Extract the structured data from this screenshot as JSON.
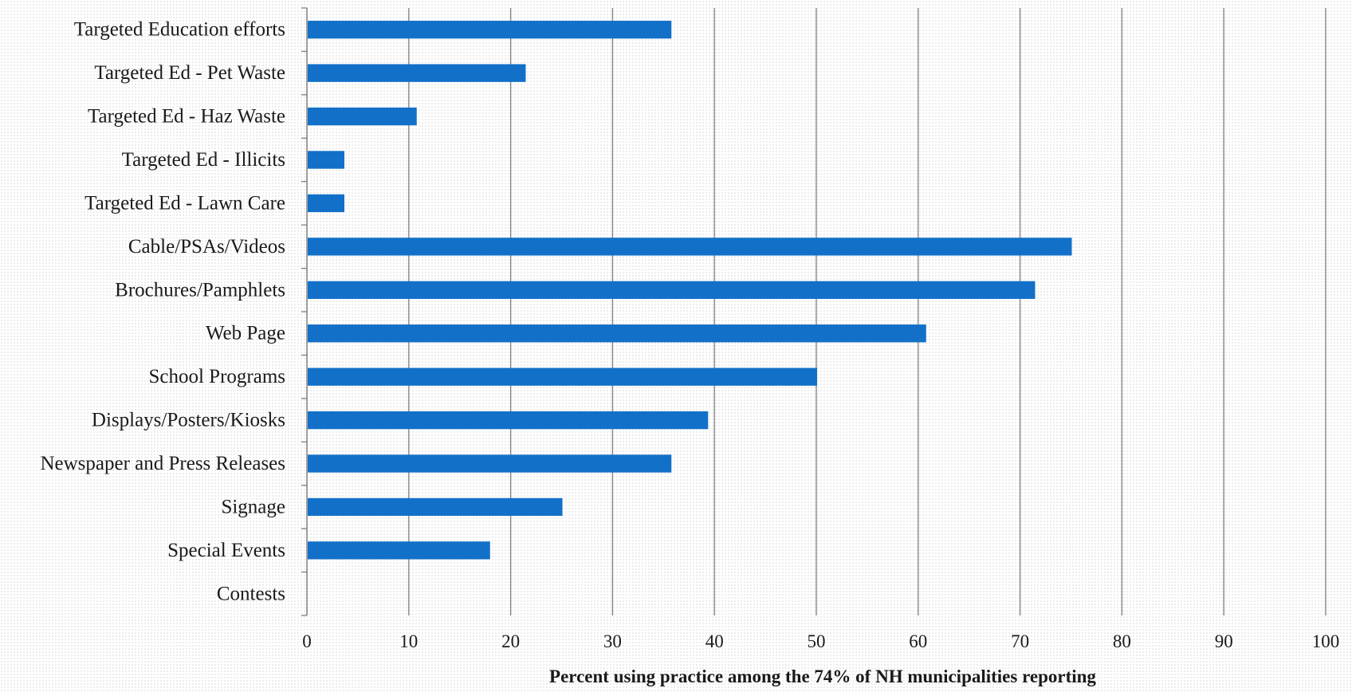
{
  "chart_data": {
    "type": "bar",
    "orientation": "horizontal",
    "categories": [
      "Targeted Education efforts",
      "Targeted Ed - Pet Waste",
      "Targeted Ed - Haz Waste",
      "Targeted Ed - Illicits",
      "Targeted Ed - Lawn Care",
      "Cable/PSAs/Videos",
      "Brochures/Pamphlets",
      "Web Page",
      "School Programs",
      "Displays/Posters/Kiosks",
      "Newspaper and Press Releases",
      "Signage",
      "Special Events",
      "Contests"
    ],
    "values": [
      35.7,
      21.4,
      10.7,
      3.6,
      3.6,
      75.0,
      71.4,
      60.7,
      50.0,
      39.3,
      35.7,
      25.0,
      17.9,
      0
    ],
    "xlabel": "Percent  using practice among the 74% of NH municipalities reporting",
    "ylabel": "",
    "title": "",
    "xlim": [
      0,
      100
    ],
    "xticks": [
      "0",
      "10",
      "20",
      "30",
      "40",
      "50",
      "60",
      "70",
      "80",
      "90",
      "100"
    ],
    "grid": "vertical",
    "legend": "none",
    "bar_color": "#1270c8"
  }
}
